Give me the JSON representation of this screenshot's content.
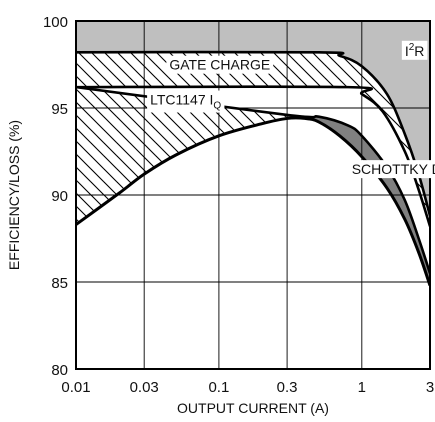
{
  "chart_data": {
    "type": "area",
    "title": "",
    "xlabel": "OUTPUT CURRENT (A)",
    "ylabel": "EFFICIENCY/LOSS (%)",
    "x_scale": "log",
    "xlim": [
      0.01,
      3
    ],
    "ylim": [
      80,
      100
    ],
    "x_ticks": [
      0.01,
      0.03,
      0.1,
      0.3,
      1,
      3
    ],
    "x_tick_labels": [
      "0.01",
      "0.03",
      "0.1",
      "0.3",
      "1",
      "3"
    ],
    "y_ticks": [
      80,
      85,
      90,
      95,
      100
    ],
    "y_tick_labels": [
      "80",
      "85",
      "90",
      "95",
      "100"
    ],
    "grid": true,
    "colors": {
      "i2r_fill": "#bfbfbf",
      "schottky_fill": "#808080",
      "hatch": "#000000",
      "curve": "#000000"
    },
    "series": [
      {
        "x": [
          0.01,
          0.5,
          0.7,
          1,
          1.5,
          2,
          2.5,
          3
        ],
        "y": [
          98.2,
          98.2,
          98.0,
          97.4,
          95.8,
          93.5,
          91.2,
          88.8
        ]
      },
      {
        "x": [
          0.01,
          0.8,
          1,
          1.4,
          2,
          2.5,
          3
        ],
        "y": [
          96.2,
          96.2,
          95.8,
          94.8,
          92.5,
          90.3,
          88.2
        ]
      },
      {
        "x": [
          0.01,
          0.3,
          0.5,
          0.8,
          1,
          1.5,
          2,
          2.5,
          3
        ],
        "y": [
          96.2,
          94.6,
          94.5,
          94.0,
          93.4,
          91.6,
          89.7,
          87.5,
          85.5
        ]
      },
      {
        "x": [
          0.01,
          0.02,
          0.03,
          0.05,
          0.1,
          0.2,
          0.3,
          0.4,
          0.5,
          0.7,
          1,
          1.5,
          2,
          2.5,
          3
        ],
        "y": [
          88.3,
          90.1,
          91.2,
          92.3,
          93.4,
          94.1,
          94.4,
          94.4,
          94.2,
          93.4,
          92.2,
          90.4,
          88.6,
          86.7,
          84.8
        ]
      }
    ],
    "annotations": [
      {
        "text": "GATE CHARGE",
        "x": 0.045,
        "y": 97.2
      },
      {
        "text": "I",
        "sup": "2",
        "after": "R",
        "x": 2.0,
        "y": 98.0
      },
      {
        "text": "LTC1147 I",
        "sub": "Q",
        "x": 0.033,
        "y": 95.2
      },
      {
        "text": "SCHOTTKY DIODE",
        "x": 0.85,
        "y": 91.2
      }
    ]
  }
}
